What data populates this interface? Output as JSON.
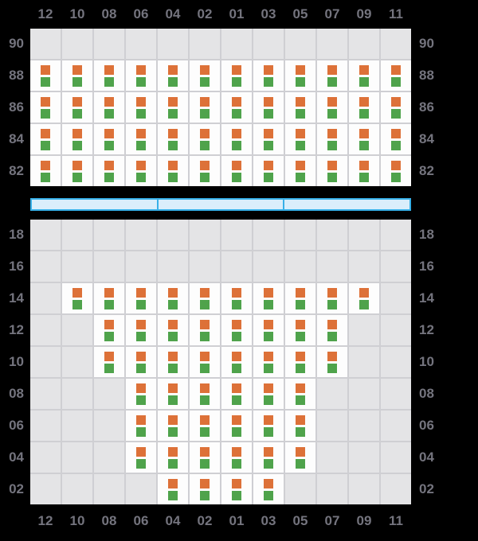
{
  "colors": {
    "background": "#000000",
    "label_text": "#74747e",
    "grid_line": "#cfcfd3",
    "cell_empty": "#e4e4e6",
    "cell_occupied": "#fdfdfd",
    "marker_orange": "#dd7138",
    "marker_green": "#4fa34b",
    "hatch_fill": "#daeefb",
    "hatch_border": "#38b0e8"
  },
  "columns": [
    "12",
    "10",
    "08",
    "06",
    "04",
    "02",
    "01",
    "03",
    "05",
    "07",
    "09",
    "11"
  ],
  "deck": {
    "tiers": [
      {
        "label": "90",
        "cells": [
          0,
          0,
          0,
          0,
          0,
          0,
          0,
          0,
          0,
          0,
          0,
          0
        ]
      },
      {
        "label": "88",
        "cells": [
          1,
          1,
          1,
          1,
          1,
          1,
          1,
          1,
          1,
          1,
          1,
          1
        ]
      },
      {
        "label": "86",
        "cells": [
          1,
          1,
          1,
          1,
          1,
          1,
          1,
          1,
          1,
          1,
          1,
          1
        ]
      },
      {
        "label": "84",
        "cells": [
          1,
          1,
          1,
          1,
          1,
          1,
          1,
          1,
          1,
          1,
          1,
          1
        ]
      },
      {
        "label": "82",
        "cells": [
          1,
          1,
          1,
          1,
          1,
          1,
          1,
          1,
          1,
          1,
          1,
          1
        ]
      }
    ]
  },
  "hatch_covers": {
    "segments": 3
  },
  "hold": {
    "tiers": [
      {
        "label": "18",
        "cells": [
          0,
          0,
          0,
          0,
          0,
          0,
          0,
          0,
          0,
          0,
          0,
          0
        ]
      },
      {
        "label": "16",
        "cells": [
          0,
          0,
          0,
          0,
          0,
          0,
          0,
          0,
          0,
          0,
          0,
          0
        ]
      },
      {
        "label": "14",
        "cells": [
          0,
          1,
          1,
          1,
          1,
          1,
          1,
          1,
          1,
          1,
          1,
          0
        ]
      },
      {
        "label": "12",
        "cells": [
          0,
          0,
          1,
          1,
          1,
          1,
          1,
          1,
          1,
          1,
          0,
          0
        ]
      },
      {
        "label": "10",
        "cells": [
          0,
          0,
          1,
          1,
          1,
          1,
          1,
          1,
          1,
          1,
          0,
          0
        ]
      },
      {
        "label": "08",
        "cells": [
          0,
          0,
          0,
          1,
          1,
          1,
          1,
          1,
          1,
          0,
          0,
          0
        ]
      },
      {
        "label": "06",
        "cells": [
          0,
          0,
          0,
          1,
          1,
          1,
          1,
          1,
          1,
          0,
          0,
          0
        ]
      },
      {
        "label": "04",
        "cells": [
          0,
          0,
          0,
          1,
          1,
          1,
          1,
          1,
          1,
          0,
          0,
          0
        ]
      },
      {
        "label": "02",
        "cells": [
          0,
          0,
          0,
          0,
          1,
          1,
          1,
          1,
          0,
          0,
          0,
          0
        ]
      }
    ]
  },
  "markers": {
    "top": "cargo-marker-orange",
    "bottom": "cargo-marker-green"
  }
}
